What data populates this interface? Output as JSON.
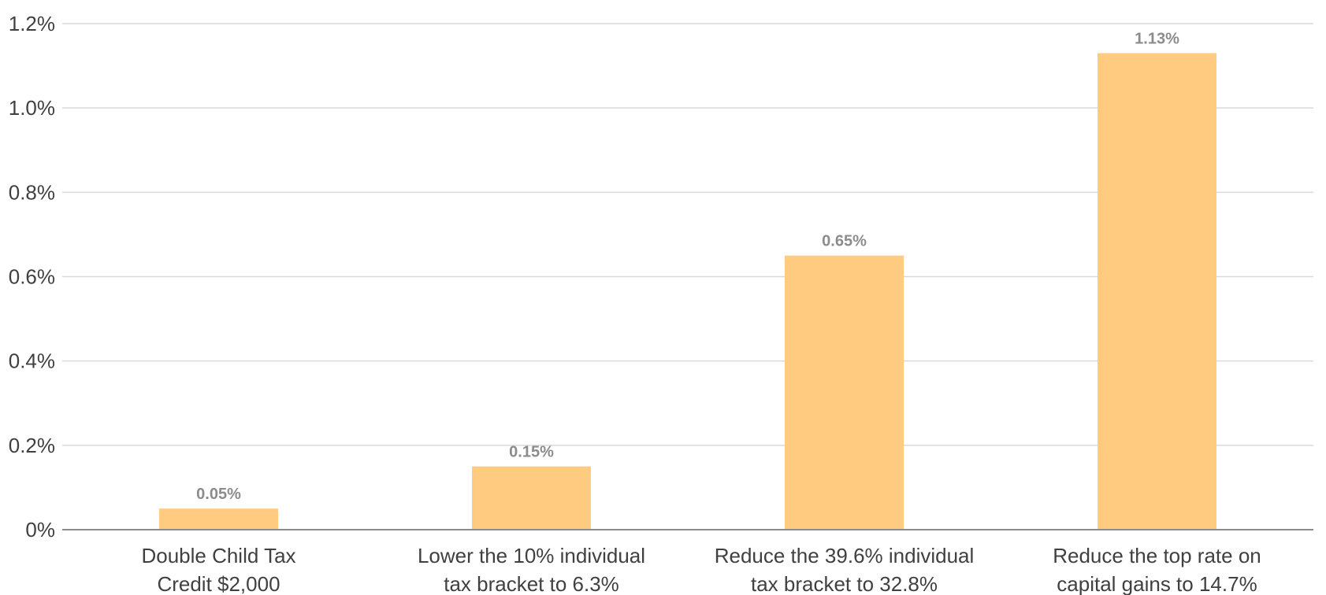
{
  "chart_data": {
    "type": "bar",
    "categories": [
      [
        "Double Child Tax",
        "Credit $2,000"
      ],
      [
        "Lower the 10% individual",
        "tax bracket to 6.3%"
      ],
      [
        "Reduce the 39.6% individual",
        "tax bracket to 32.8%"
      ],
      [
        "Reduce the top rate on",
        "capital gains to 14.7%"
      ]
    ],
    "values": [
      0.05,
      0.15,
      0.65,
      1.13
    ],
    "data_labels": [
      "0.05%",
      "0.15%",
      "0.65%",
      "1.13%"
    ],
    "ylim": [
      0,
      1.2
    ],
    "yticks": [
      0,
      0.2,
      0.4,
      0.6,
      0.8,
      1.0,
      1.2
    ],
    "ytick_labels": [
      "0%",
      "0.2%",
      "0.4%",
      "0.6%",
      "0.8%",
      "1.0%",
      "1.2%"
    ],
    "grid": true,
    "legend": "none",
    "bar_color": "#fecb81",
    "data_label_color": "#8c8c8c"
  }
}
